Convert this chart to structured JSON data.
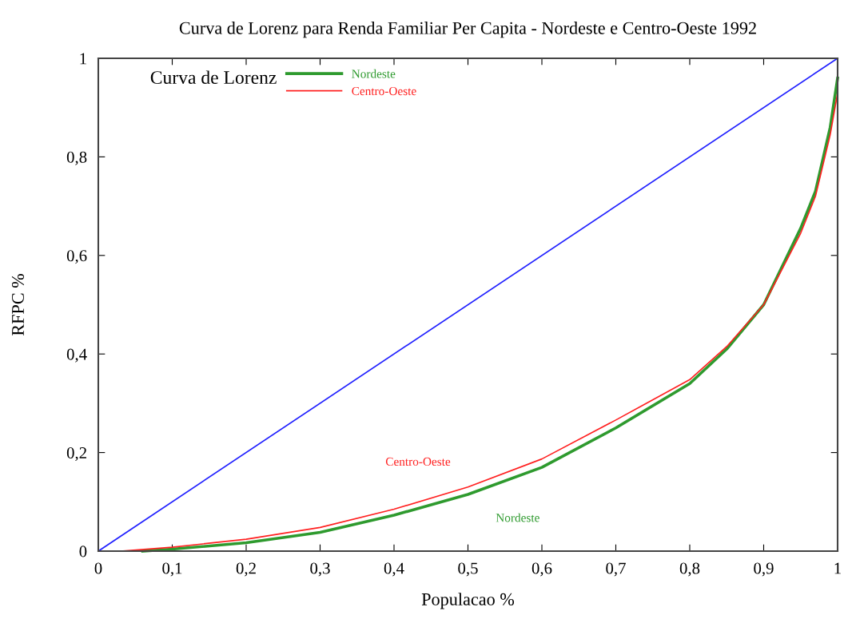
{
  "chart_data": {
    "type": "line",
    "title": "Curva de Lorenz para Renda Familiar Per Capita - Nordeste e Centro-Oeste 1992",
    "xlabel": "Populacao %",
    "ylabel": "RFPC %",
    "legend_title": "Curva de Lorenz",
    "legend": "top left",
    "grid": false,
    "xlim": [
      0,
      1
    ],
    "ylim": [
      0,
      1
    ],
    "xticks": [
      0,
      {
        "value": 0.1,
        "label": "0,1"
      },
      {
        "value": 0.2,
        "label": "0,2"
      },
      {
        "value": 0.3,
        "label": "0,3"
      },
      {
        "value": 0.4,
        "label": "0,4"
      },
      {
        "value": 0.5,
        "label": "0,5"
      },
      {
        "value": 0.6,
        "label": "0,6"
      },
      {
        "value": 0.7,
        "label": "0,7"
      },
      {
        "value": 0.8,
        "label": "0,8"
      },
      {
        "value": 0.9,
        "label": "0,9"
      },
      1
    ],
    "yticks": [
      0,
      {
        "value": 0.2,
        "label": "0,2"
      },
      {
        "value": 0.4,
        "label": "0,4"
      },
      {
        "value": 0.6,
        "label": "0,6"
      },
      {
        "value": 0.8,
        "label": "0,8"
      },
      1
    ],
    "series": [
      {
        "name": "Nordeste",
        "color": "#2e9a2e",
        "x": [
          0.06,
          0.1,
          0.2,
          0.3,
          0.4,
          0.5,
          0.6,
          0.7,
          0.8,
          0.85,
          0.9,
          0.95,
          0.97,
          0.99,
          1.0
        ],
        "values": [
          0,
          0.004,
          0.017,
          0.038,
          0.073,
          0.115,
          0.17,
          0.25,
          0.34,
          0.41,
          0.5,
          0.655,
          0.73,
          0.86,
          0.96
        ]
      },
      {
        "name": "Centro-Oeste",
        "color": "#ff2020",
        "x": [
          0.03,
          0.1,
          0.2,
          0.3,
          0.4,
          0.5,
          0.6,
          0.7,
          0.8,
          0.85,
          0.9,
          0.95,
          0.97,
          0.99,
          1.0
        ],
        "values": [
          0,
          0.008,
          0.024,
          0.048,
          0.085,
          0.13,
          0.187,
          0.266,
          0.348,
          0.415,
          0.5,
          0.645,
          0.72,
          0.845,
          0.93
        ]
      },
      {
        "color": "#2020ff",
        "x": [
          0,
          1
        ],
        "values": [
          0,
          1
        ]
      }
    ],
    "annotations": [
      "Nordeste",
      "Centro-Oeste"
    ]
  }
}
